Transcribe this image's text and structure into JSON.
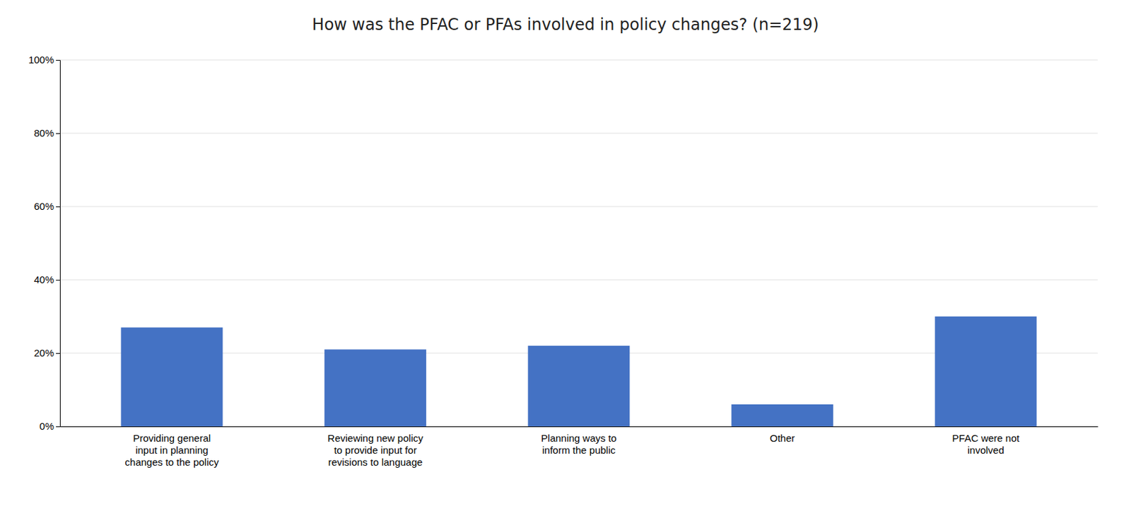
{
  "chart_data": {
    "type": "bar",
    "title": "How was the PFAC or PFAs involved in policy changes? (n=219)",
    "categories": [
      "Providing general\ninput in planning\nchanges to the policy",
      "Reviewing new policy\nto provide input for\nrevisions to language",
      "Planning ways to\ninform the public",
      "Other",
      "PFAC were not\ninvolved"
    ],
    "values": [
      0.27,
      0.21,
      0.22,
      0.06,
      0.3
    ],
    "color": "#4472C4",
    "ylim": [
      0,
      1.0
    ],
    "yticks": [
      {
        "value": 0.0,
        "label": "0%"
      },
      {
        "value": 0.2,
        "label": "20%"
      },
      {
        "value": 0.4,
        "label": "40%"
      },
      {
        "value": 0.6,
        "label": "60%"
      },
      {
        "value": 0.8,
        "label": "80%"
      },
      {
        "value": 1.0,
        "label": "100%"
      }
    ],
    "grid": true
  }
}
